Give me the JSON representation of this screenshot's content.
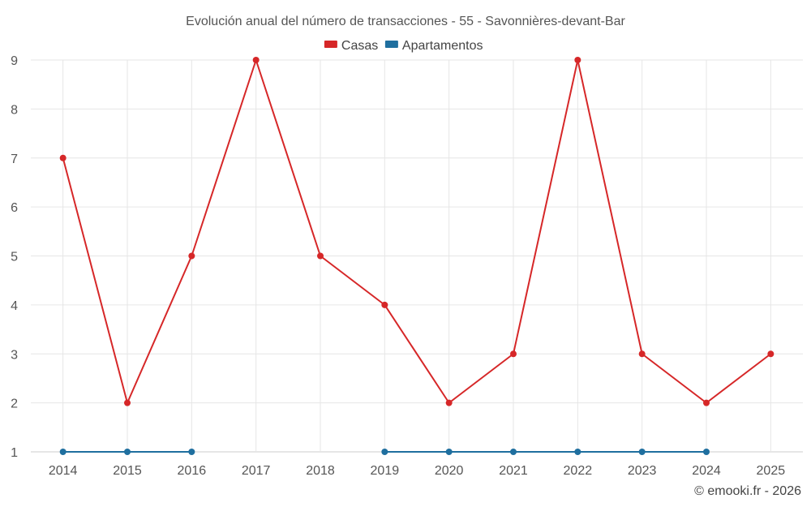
{
  "chart_data": {
    "type": "line",
    "title": "Evolución anual del número de transacciones - 55 - Savonnières-devant-Bar",
    "categories": [
      "2014",
      "2015",
      "2016",
      "2017",
      "2018",
      "2019",
      "2020",
      "2021",
      "2022",
      "2023",
      "2024",
      "2025"
    ],
    "ylim": [
      1,
      9
    ],
    "yticks": [
      "1",
      "2",
      "3",
      "4",
      "5",
      "6",
      "7",
      "8",
      "9"
    ],
    "grid": true,
    "legend_position": "top-center",
    "series": [
      {
        "name": "Casas",
        "color": "#d62728",
        "values": [
          7,
          2,
          5,
          9,
          5,
          4,
          2,
          3,
          9,
          3,
          2,
          3
        ]
      },
      {
        "name": "Apartamentos",
        "color": "#1f6f9f",
        "values": [
          1,
          1,
          1,
          null,
          null,
          1,
          1,
          1,
          1,
          1,
          1,
          null
        ]
      }
    ]
  },
  "credit": "© emooki.fr - 2026"
}
